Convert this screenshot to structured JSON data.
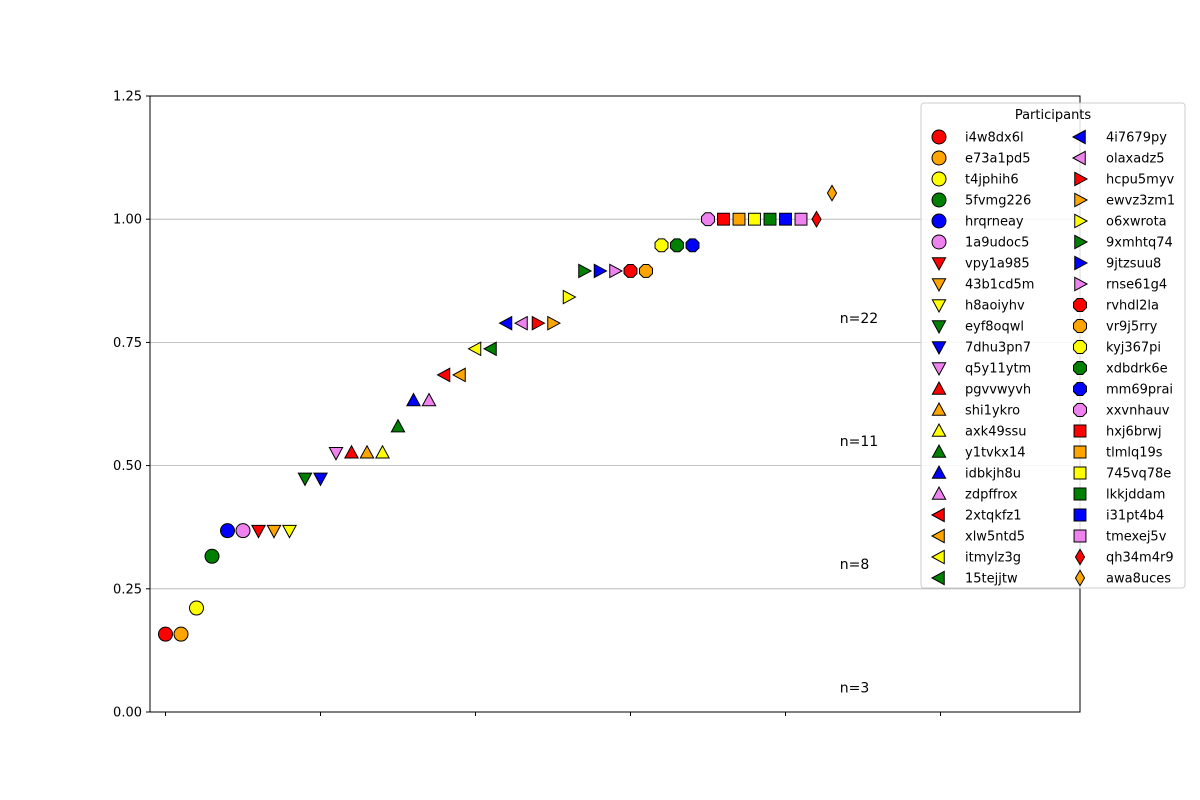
{
  "chart_data": {
    "type": "scatter",
    "title": "",
    "xlabel": "",
    "ylabel": "",
    "xlim": [
      -0.1,
      5.9
    ],
    "ylim": [
      0,
      1.25
    ],
    "yticks": [
      "0.00",
      "0.25",
      "0.50",
      "0.75",
      "1.00",
      "1.25"
    ],
    "ytick_values": [
      0,
      0.25,
      0.5,
      0.75,
      1.0,
      1.25
    ],
    "xtick_values": [
      0,
      1,
      2,
      3,
      4,
      5
    ],
    "grid": "horizontal",
    "legend_title": "Participants",
    "legend_position": "upper-right",
    "annotations": [
      {
        "text": "n=22",
        "x": 4.35,
        "y": 0.8
      },
      {
        "text": "n=11",
        "x": 4.35,
        "y": 0.55
      },
      {
        "text": "n=8",
        "x": 4.35,
        "y": 0.3
      },
      {
        "text": "n=3",
        "x": 4.35,
        "y": 0.05
      }
    ],
    "series": [
      {
        "name": "i4w8dx6l",
        "marker": "circle",
        "color": "#ff0000",
        "x": 0.0,
        "y": 0.158
      },
      {
        "name": "e73a1pd5",
        "marker": "circle",
        "color": "#ffa500",
        "x": 0.1,
        "y": 0.158
      },
      {
        "name": "t4jphih6",
        "marker": "circle",
        "color": "#ffff00",
        "x": 0.2,
        "y": 0.211
      },
      {
        "name": "5fvmg226",
        "marker": "circle",
        "color": "#008000",
        "x": 0.3,
        "y": 0.316
      },
      {
        "name": "hrqrneay",
        "marker": "circle",
        "color": "#0000ff",
        "x": 0.4,
        "y": 0.368
      },
      {
        "name": "1a9udoc5",
        "marker": "circle",
        "color": "#ee82ee",
        "x": 0.5,
        "y": 0.368
      },
      {
        "name": "vpy1a985",
        "marker": "triangle-down",
        "color": "#ff0000",
        "x": 0.6,
        "y": 0.368
      },
      {
        "name": "43b1cd5m",
        "marker": "triangle-down",
        "color": "#ffa500",
        "x": 0.7,
        "y": 0.368
      },
      {
        "name": "h8aoiyhv",
        "marker": "triangle-down",
        "color": "#ffff00",
        "x": 0.8,
        "y": 0.368
      },
      {
        "name": "eyf8oqwl",
        "marker": "triangle-down",
        "color": "#008000",
        "x": 0.9,
        "y": 0.474
      },
      {
        "name": "7dhu3pn7",
        "marker": "triangle-down",
        "color": "#0000ff",
        "x": 1.0,
        "y": 0.474
      },
      {
        "name": "q5y11ytm",
        "marker": "triangle-down",
        "color": "#ee82ee",
        "x": 1.1,
        "y": 0.526
      },
      {
        "name": "pgvvwyvh",
        "marker": "triangle-up",
        "color": "#ff0000",
        "x": 1.2,
        "y": 0.526
      },
      {
        "name": "shi1ykro",
        "marker": "triangle-up",
        "color": "#ffa500",
        "x": 1.3,
        "y": 0.526
      },
      {
        "name": "axk49ssu",
        "marker": "triangle-up",
        "color": "#ffff00",
        "x": 1.4,
        "y": 0.526
      },
      {
        "name": "y1tvkx14",
        "marker": "triangle-up",
        "color": "#008000",
        "x": 1.5,
        "y": 0.579
      },
      {
        "name": "idbkjh8u",
        "marker": "triangle-up",
        "color": "#0000ff",
        "x": 1.6,
        "y": 0.632
      },
      {
        "name": "zdpffrox",
        "marker": "triangle-up",
        "color": "#ee82ee",
        "x": 1.7,
        "y": 0.632
      },
      {
        "name": "2xtqkfz1",
        "marker": "triangle-left",
        "color": "#ff0000",
        "x": 1.8,
        "y": 0.684
      },
      {
        "name": "xlw5ntd5",
        "marker": "triangle-left",
        "color": "#ffa500",
        "x": 1.9,
        "y": 0.684
      },
      {
        "name": "itmylz3g",
        "marker": "triangle-left",
        "color": "#ffff00",
        "x": 2.0,
        "y": 0.737
      },
      {
        "name": "15tejjtw",
        "marker": "triangle-left",
        "color": "#008000",
        "x": 2.1,
        "y": 0.737
      },
      {
        "name": "4i7679py",
        "marker": "triangle-left",
        "color": "#0000ff",
        "x": 2.2,
        "y": 0.789
      },
      {
        "name": "olaxadz5",
        "marker": "triangle-left",
        "color": "#ee82ee",
        "x": 2.3,
        "y": 0.789
      },
      {
        "name": "hcpu5myv",
        "marker": "triangle-right",
        "color": "#ff0000",
        "x": 2.4,
        "y": 0.789
      },
      {
        "name": "ewvz3zm1",
        "marker": "triangle-right",
        "color": "#ffa500",
        "x": 2.5,
        "y": 0.789
      },
      {
        "name": "o6xwrota",
        "marker": "triangle-right",
        "color": "#ffff00",
        "x": 2.6,
        "y": 0.842
      },
      {
        "name": "9xmhtq74",
        "marker": "triangle-right",
        "color": "#008000",
        "x": 2.7,
        "y": 0.895
      },
      {
        "name": "9jtzsuu8",
        "marker": "triangle-right",
        "color": "#0000ff",
        "x": 2.8,
        "y": 0.895
      },
      {
        "name": "rnse61g4",
        "marker": "triangle-right",
        "color": "#ee82ee",
        "x": 2.9,
        "y": 0.895
      },
      {
        "name": "rvhdl2la",
        "marker": "octagon",
        "color": "#ff0000",
        "x": 3.0,
        "y": 0.895
      },
      {
        "name": "vr9j5rry",
        "marker": "octagon",
        "color": "#ffa500",
        "x": 3.1,
        "y": 0.895
      },
      {
        "name": "kyj367pi",
        "marker": "octagon",
        "color": "#ffff00",
        "x": 3.2,
        "y": 0.947
      },
      {
        "name": "xdbdrk6e",
        "marker": "octagon",
        "color": "#008000",
        "x": 3.3,
        "y": 0.947
      },
      {
        "name": "mm69prai",
        "marker": "octagon",
        "color": "#0000ff",
        "x": 3.4,
        "y": 0.947
      },
      {
        "name": "xxvnhauv",
        "marker": "octagon",
        "color": "#ee82ee",
        "x": 3.5,
        "y": 1.0
      },
      {
        "name": "hxj6brwj",
        "marker": "square",
        "color": "#ff0000",
        "x": 3.6,
        "y": 1.0
      },
      {
        "name": "tlmlq19s",
        "marker": "square",
        "color": "#ffa500",
        "x": 3.7,
        "y": 1.0
      },
      {
        "name": "745vq78e",
        "marker": "square",
        "color": "#ffff00",
        "x": 3.8,
        "y": 1.0
      },
      {
        "name": "lkkjddam",
        "marker": "square",
        "color": "#008000",
        "x": 3.9,
        "y": 1.0
      },
      {
        "name": "i31pt4b4",
        "marker": "square",
        "color": "#0000ff",
        "x": 4.0,
        "y": 1.0
      },
      {
        "name": "tmexej5v",
        "marker": "square",
        "color": "#ee82ee",
        "x": 4.1,
        "y": 1.0
      },
      {
        "name": "qh34m4r9",
        "marker": "diamond",
        "color": "#ff0000",
        "x": 4.2,
        "y": 1.0
      },
      {
        "name": "awa8uces",
        "marker": "diamond",
        "color": "#ffa500",
        "x": 4.3,
        "y": 1.053
      }
    ]
  }
}
